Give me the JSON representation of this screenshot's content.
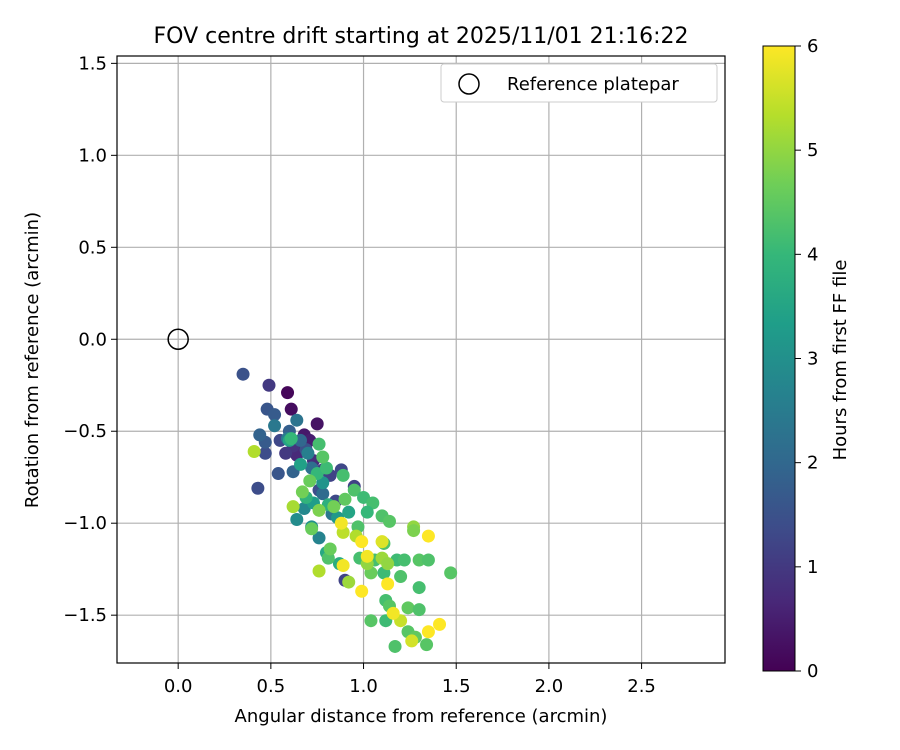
{
  "chart_data": {
    "type": "scatter",
    "title": "FOV centre drift starting at 2025/11/01 21:16:22",
    "xlabel": "Angular distance from reference (arcmin)",
    "ylabel": "Rotation from reference (arcmin)",
    "xlim": [
      -0.33,
      2.95
    ],
    "ylim": [
      -1.76,
      1.54
    ],
    "xticks": [
      0.0,
      0.5,
      1.0,
      1.5,
      2.0,
      2.5
    ],
    "xtick_labels": [
      "0.0",
      "0.5",
      "1.0",
      "1.5",
      "2.0",
      "2.5"
    ],
    "yticks": [
      1.5,
      1.0,
      0.5,
      0.0,
      -0.5,
      -1.0,
      -1.5
    ],
    "ytick_labels": [
      "1.5",
      "1.0",
      "0.5",
      "0.0",
      "−0.5",
      "−1.0",
      "−1.5"
    ],
    "grid": true,
    "legend": {
      "position": "top-right",
      "entries": [
        "Reference platepar"
      ]
    },
    "reference_point": {
      "x": 0.0,
      "y": 0.0,
      "label": "Reference platepar"
    },
    "colorbar": {
      "label": "Hours from first FF file",
      "range": [
        0,
        6
      ],
      "ticks": [
        0,
        1,
        2,
        3,
        4,
        5,
        6
      ],
      "tick_labels": [
        "0",
        "1",
        "2",
        "3",
        "4",
        "5",
        "6"
      ],
      "colormap": "viridis",
      "colors": [
        "#440154",
        "#482878",
        "#3e4a89",
        "#31688e",
        "#26828e",
        "#1f9e89",
        "#35b779",
        "#6ece58",
        "#b5de2b",
        "#fde725"
      ]
    },
    "points": [
      [
        0.59,
        -0.29,
        0.1
      ],
      [
        0.61,
        -0.38,
        0.2
      ],
      [
        0.75,
        -0.46,
        0.3
      ],
      [
        0.68,
        -0.52,
        0.4
      ],
      [
        0.71,
        -0.55,
        0.5
      ],
      [
        0.66,
        -0.59,
        0.6
      ],
      [
        0.64,
        -0.63,
        0.7
      ],
      [
        0.73,
        -0.66,
        0.8
      ],
      [
        0.62,
        -0.58,
        0.9
      ],
      [
        0.58,
        -0.62,
        1.0
      ],
      [
        0.49,
        -0.25,
        1.0
      ],
      [
        0.78,
        -0.71,
        1.1
      ],
      [
        0.82,
        -0.74,
        1.2
      ],
      [
        0.88,
        -0.71,
        1.3
      ],
      [
        0.95,
        -0.8,
        1.2
      ],
      [
        0.55,
        -0.55,
        1.3
      ],
      [
        0.47,
        -0.62,
        1.4
      ],
      [
        0.69,
        -0.6,
        1.5
      ],
      [
        0.76,
        -0.82,
        1.4
      ],
      [
        0.85,
        -0.88,
        1.3
      ],
      [
        0.9,
        -1.31,
        1.2
      ],
      [
        0.43,
        -0.81,
        1.4
      ],
      [
        0.35,
        -0.19,
        1.5
      ],
      [
        0.48,
        -0.38,
        1.6
      ],
      [
        0.52,
        -0.41,
        1.7
      ],
      [
        0.6,
        -0.5,
        1.8
      ],
      [
        0.62,
        -0.72,
        1.9
      ],
      [
        0.54,
        -0.73,
        1.6
      ],
      [
        0.47,
        -0.56,
        1.7
      ],
      [
        0.44,
        -0.52,
        1.9
      ],
      [
        0.66,
        -0.55,
        2.0
      ],
      [
        0.72,
        -0.7,
        2.2
      ],
      [
        0.78,
        -0.84,
        2.1
      ],
      [
        0.64,
        -0.44,
        2.3
      ],
      [
        0.52,
        -0.47,
        2.4
      ],
      [
        0.59,
        -0.54,
        2.5
      ],
      [
        0.7,
        -0.62,
        2.6
      ],
      [
        0.83,
        -0.95,
        2.4
      ],
      [
        0.76,
        -1.08,
        2.7
      ],
      [
        0.68,
        -0.92,
        2.8
      ],
      [
        0.64,
        -0.98,
        2.9
      ],
      [
        0.72,
        -1.02,
        3.0
      ],
      [
        0.78,
        -0.78,
        3.1
      ],
      [
        0.86,
        -0.97,
        3.2
      ],
      [
        0.73,
        -0.89,
        3.3
      ],
      [
        0.66,
        -0.68,
        3.4
      ],
      [
        0.6,
        -0.55,
        3.5
      ],
      [
        0.8,
        -1.16,
        3.6
      ],
      [
        0.87,
        -1.22,
        3.7
      ],
      [
        0.92,
        -0.94,
        3.5
      ],
      [
        0.81,
        -0.9,
        3.8
      ],
      [
        0.69,
        -0.86,
        3.9
      ],
      [
        0.75,
        -0.73,
        4.0
      ],
      [
        0.8,
        -0.7,
        4.1
      ],
      [
        0.76,
        -0.57,
        4.2
      ],
      [
        0.61,
        -0.54,
        4.0
      ],
      [
        0.89,
        -0.74,
        4.2
      ],
      [
        0.95,
        -0.82,
        4.3
      ],
      [
        1.0,
        -0.86,
        4.1
      ],
      [
        1.05,
        -0.89,
        4.2
      ],
      [
        1.1,
        -0.96,
        4.3
      ],
      [
        1.14,
        -0.99,
        4.4
      ],
      [
        1.02,
        -0.94,
        4.0
      ],
      [
        0.97,
        -1.02,
        4.3
      ],
      [
        1.06,
        -1.2,
        4.2
      ],
      [
        1.11,
        -1.11,
        4.3
      ],
      [
        1.18,
        -1.2,
        4.1
      ],
      [
        1.22,
        -1.2,
        4.2
      ],
      [
        1.3,
        -1.2,
        4.4
      ],
      [
        1.35,
        -1.2,
        4.3
      ],
      [
        1.11,
        -1.27,
        4.1
      ],
      [
        1.2,
        -1.29,
        4.3
      ],
      [
        1.3,
        -1.35,
        4.2
      ],
      [
        1.47,
        -1.27,
        4.4
      ],
      [
        1.12,
        -1.42,
        4.2
      ],
      [
        1.14,
        -1.45,
        4.4
      ],
      [
        1.24,
        -1.46,
        4.5
      ],
      [
        1.3,
        -1.47,
        4.3
      ],
      [
        1.04,
        -1.53,
        4.4
      ],
      [
        1.12,
        -1.53,
        4.1
      ],
      [
        1.17,
        -1.67,
        4.3
      ],
      [
        1.24,
        -1.59,
        4.4
      ],
      [
        1.28,
        -1.62,
        4.5
      ],
      [
        1.34,
        -1.66,
        4.4
      ],
      [
        0.81,
        -1.19,
        4.3
      ],
      [
        0.98,
        -1.19,
        4.2
      ],
      [
        1.04,
        -1.27,
        4.6
      ],
      [
        0.72,
        -1.03,
        4.6
      ],
      [
        0.82,
        -1.14,
        4.6
      ],
      [
        0.9,
        -0.87,
        4.5
      ],
      [
        0.84,
        -0.91,
        4.7
      ],
      [
        0.78,
        -0.64,
        4.4
      ],
      [
        0.71,
        -0.77,
        4.6
      ],
      [
        0.67,
        -0.83,
        4.7
      ],
      [
        0.76,
        -0.93,
        4.8
      ],
      [
        0.62,
        -0.91,
        5.2
      ],
      [
        0.41,
        -0.61,
        5.3
      ],
      [
        0.76,
        -1.26,
        5.3
      ],
      [
        0.92,
        -1.32,
        5.1
      ],
      [
        1.02,
        -1.22,
        5.0
      ],
      [
        1.1,
        -1.19,
        5.1
      ],
      [
        1.13,
        -1.22,
        5.0
      ],
      [
        1.27,
        -1.02,
        5.0
      ],
      [
        1.27,
        -1.04,
        4.8
      ],
      [
        0.89,
        -1.05,
        5.4
      ],
      [
        0.96,
        -1.07,
        5.3
      ],
      [
        1.2,
        -1.53,
        5.5
      ],
      [
        1.26,
        -1.64,
        5.6
      ],
      [
        1.1,
        -1.1,
        5.7
      ],
      [
        0.88,
        -1.0,
        5.9
      ],
      [
        0.89,
        -1.23,
        5.9
      ],
      [
        0.99,
        -1.1,
        6.0
      ],
      [
        1.02,
        -1.18,
        5.9
      ],
      [
        0.99,
        -1.37,
        6.0
      ],
      [
        1.13,
        -1.33,
        6.0
      ],
      [
        1.16,
        -1.49,
        5.9
      ],
      [
        1.35,
        -1.07,
        6.0
      ],
      [
        1.35,
        -1.59,
        6.0
      ],
      [
        1.41,
        -1.55,
        6.0
      ]
    ]
  }
}
